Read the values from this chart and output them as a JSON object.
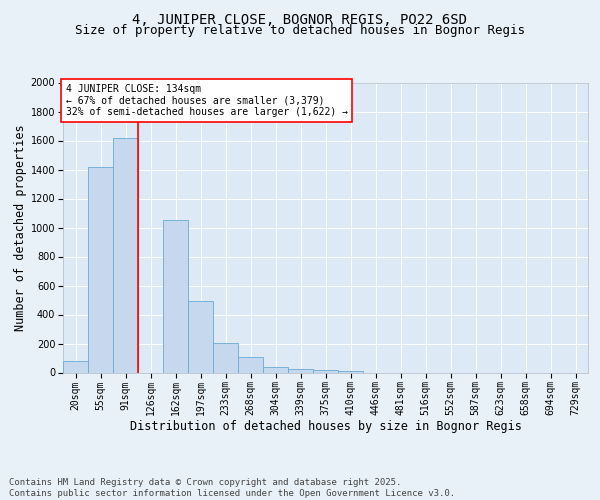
{
  "title": "4, JUNIPER CLOSE, BOGNOR REGIS, PO22 6SD",
  "subtitle": "Size of property relative to detached houses in Bognor Regis",
  "xlabel": "Distribution of detached houses by size in Bognor Regis",
  "ylabel": "Number of detached properties",
  "categories": [
    "20sqm",
    "55sqm",
    "91sqm",
    "126sqm",
    "162sqm",
    "197sqm",
    "233sqm",
    "268sqm",
    "304sqm",
    "339sqm",
    "375sqm",
    "410sqm",
    "446sqm",
    "481sqm",
    "516sqm",
    "552sqm",
    "587sqm",
    "623sqm",
    "658sqm",
    "694sqm",
    "729sqm"
  ],
  "values": [
    80,
    1420,
    1620,
    0,
    1050,
    490,
    205,
    110,
    38,
    25,
    18,
    10,
    0,
    0,
    0,
    0,
    0,
    0,
    0,
    0,
    0
  ],
  "bar_color": "#c5d8ee",
  "bar_edge_color": "#6aaad4",
  "background_color": "#e8f1f8",
  "plot_bg_color": "#ddeaf6",
  "vline_x": 2.5,
  "vline_color": "red",
  "ylim": [
    0,
    2000
  ],
  "yticks": [
    0,
    200,
    400,
    600,
    800,
    1000,
    1200,
    1400,
    1600,
    1800,
    2000
  ],
  "annotation_text": "4 JUNIPER CLOSE: 134sqm\n← 67% of detached houses are smaller (3,379)\n32% of semi-detached houses are larger (1,622) →",
  "annotation_box_color": "red",
  "footnote": "Contains HM Land Registry data © Crown copyright and database right 2025.\nContains public sector information licensed under the Open Government Licence v3.0.",
  "title_fontsize": 10,
  "subtitle_fontsize": 9,
  "axis_label_fontsize": 8.5,
  "tick_fontsize": 7,
  "annotation_fontsize": 7,
  "footnote_fontsize": 6.5
}
